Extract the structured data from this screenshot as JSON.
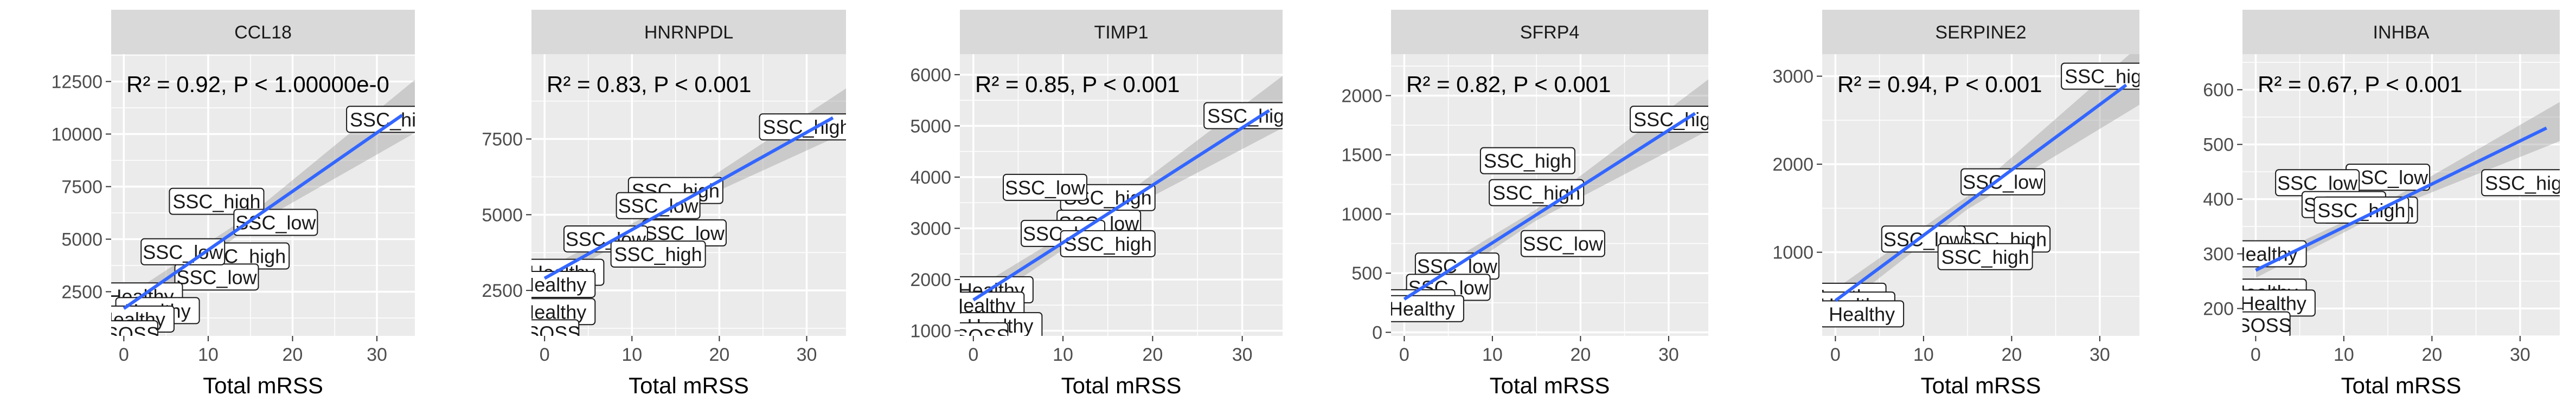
{
  "figure": {
    "xlabel": "Total mRSS",
    "colors": {
      "panel": "#ebebeb",
      "grid": "#ffffff",
      "strip": "#d9d9d9",
      "line": "#3366ff",
      "band": "#999999",
      "label_fill": "#ffffff"
    }
  },
  "chart_data": [
    {
      "type": "scatter",
      "title": "CCL18",
      "stats": "R² = 0.92, P < 1.00000e-0",
      "xlabel": "Total mRSS",
      "xlim": [
        -1.5,
        34.5
      ],
      "ylim": [
        400,
        13800
      ],
      "xticks": [
        0,
        10,
        20,
        30
      ],
      "yticks": [
        2500,
        5000,
        7500,
        10000,
        12500
      ],
      "fit": [
        {
          "x": 0,
          "y": 1700
        },
        {
          "x": 33,
          "y": 10900
        }
      ],
      "points": [
        {
          "x": 32,
          "y": 10700,
          "label": "SSC_high"
        },
        {
          "x": 11,
          "y": 6800,
          "label": "SSC_high"
        },
        {
          "x": 18,
          "y": 5800,
          "label": "SSC_low"
        },
        {
          "x": 14,
          "y": 4200,
          "label": "SSC_high"
        },
        {
          "x": 11,
          "y": 3200,
          "label": "SSC_low"
        },
        {
          "x": 7,
          "y": 4400,
          "label": "SSC_low"
        },
        {
          "x": 2,
          "y": 2300,
          "label": "Healthy"
        },
        {
          "x": 4,
          "y": 1600,
          "label": "Healthy"
        },
        {
          "x": 1,
          "y": 1200,
          "label": "Healthy"
        },
        {
          "x": 1,
          "y": 500,
          "label": "SOSS"
        }
      ]
    },
    {
      "type": "scatter",
      "title": "HNRNPDL",
      "stats": "R² = 0.83, P < 0.001",
      "xlabel": "Total mRSS",
      "xlim": [
        -1.5,
        34.5
      ],
      "ylim": [
        1000,
        10300
      ],
      "xticks": [
        0,
        10,
        20,
        30
      ],
      "yticks": [
        2500,
        5000,
        7500
      ],
      "fit": [
        {
          "x": 0,
          "y": 2900
        },
        {
          "x": 33,
          "y": 8200
        }
      ],
      "points": [
        {
          "x": 30,
          "y": 7900,
          "label": "SSC_high"
        },
        {
          "x": 15,
          "y": 5800,
          "label": "SSC_high"
        },
        {
          "x": 13,
          "y": 5300,
          "label": "SSC_low"
        },
        {
          "x": 16,
          "y": 4400,
          "label": "SSC_low"
        },
        {
          "x": 7,
          "y": 4200,
          "label": "SSC_low"
        },
        {
          "x": 13,
          "y": 3700,
          "label": "SSC_high"
        },
        {
          "x": 2,
          "y": 3100,
          "label": "Healthy"
        },
        {
          "x": 1,
          "y": 2700,
          "label": "Healthy"
        },
        {
          "x": 1,
          "y": 1800,
          "label": "Healthy"
        },
        {
          "x": 1,
          "y": 1100,
          "label": "SOSS"
        }
      ]
    },
    {
      "type": "scatter",
      "title": "TIMP1",
      "stats": "R² = 0.85, P < 0.001",
      "xlabel": "Total mRSS",
      "xlim": [
        -1.5,
        34.5
      ],
      "ylim": [
        900,
        6400
      ],
      "xticks": [
        0,
        10,
        20,
        30
      ],
      "yticks": [
        1000,
        2000,
        3000,
        4000,
        5000,
        6000
      ],
      "fit": [
        {
          "x": 0,
          "y": 1600
        },
        {
          "x": 33,
          "y": 5300
        }
      ],
      "points": [
        {
          "x": 31,
          "y": 5200,
          "label": "SSC_high"
        },
        {
          "x": 15,
          "y": 3600,
          "label": "SSC_high"
        },
        {
          "x": 8,
          "y": 3800,
          "label": "SSC_low"
        },
        {
          "x": 14,
          "y": 3100,
          "label": "SSC_low"
        },
        {
          "x": 10,
          "y": 2900,
          "label": "SSC_low"
        },
        {
          "x": 15,
          "y": 2700,
          "label": "SSC_high"
        },
        {
          "x": 2,
          "y": 1800,
          "label": "Healthy"
        },
        {
          "x": 1,
          "y": 1500,
          "label": "Healthy"
        },
        {
          "x": 3,
          "y": 1100,
          "label": "Healthy"
        },
        {
          "x": 1,
          "y": 900,
          "label": "SOSS"
        }
      ]
    },
    {
      "type": "scatter",
      "title": "SFRP4",
      "stats": "R² = 0.82, P < 0.001",
      "xlabel": "Total mRSS",
      "xlim": [
        -1.5,
        34.5
      ],
      "ylim": [
        -30,
        2350
      ],
      "xticks": [
        0,
        10,
        20,
        30
      ],
      "yticks": [
        0,
        500,
        1000,
        1500,
        2000
      ],
      "fit": [
        {
          "x": 0,
          "y": 280
        },
        {
          "x": 33,
          "y": 1850
        }
      ],
      "points": [
        {
          "x": 31,
          "y": 1800,
          "label": "SSC_high"
        },
        {
          "x": 14,
          "y": 1450,
          "label": "SSC_high"
        },
        {
          "x": 15,
          "y": 1180,
          "label": "SSC_high"
        },
        {
          "x": 18,
          "y": 750,
          "label": "SSC_low"
        },
        {
          "x": 6,
          "y": 560,
          "label": "SSC_low"
        },
        {
          "x": 5,
          "y": 380,
          "label": "SSC_low"
        },
        {
          "x": 1,
          "y": 250,
          "label": "Healthy"
        },
        {
          "x": 2,
          "y": 200,
          "label": "Healthy"
        }
      ]
    },
    {
      "type": "scatter",
      "title": "SERPINE2",
      "stats": "R² = 0.94, P < 0.001",
      "xlabel": "Total mRSS",
      "xlim": [
        -1.5,
        34.5
      ],
      "ylim": [
        50,
        3250
      ],
      "xticks": [
        0,
        10,
        20,
        30
      ],
      "yticks": [
        1000,
        2000,
        3000
      ],
      "fit": [
        {
          "x": 0,
          "y": 450
        },
        {
          "x": 33,
          "y": 2900
        }
      ],
      "points": [
        {
          "x": 31,
          "y": 3000,
          "label": "SSC_high"
        },
        {
          "x": 19,
          "y": 1800,
          "label": "SSC_low"
        },
        {
          "x": 19,
          "y": 1150,
          "label": "SSC_high"
        },
        {
          "x": 10,
          "y": 1150,
          "label": "SSC_low"
        },
        {
          "x": 17,
          "y": 950,
          "label": "SSC_high"
        },
        {
          "x": 1,
          "y": 500,
          "label": "Healthy"
        },
        {
          "x": 2,
          "y": 400,
          "label": "Healthy"
        },
        {
          "x": 3,
          "y": 300,
          "label": "Healthy"
        }
      ]
    },
    {
      "type": "scatter",
      "title": "INHBA",
      "stats": "R² = 0.67, P < 0.001",
      "xlabel": "Total mRSS",
      "xlim": [
        -1.5,
        34.5
      ],
      "ylim": [
        150,
        665
      ],
      "xticks": [
        0,
        10,
        20,
        30
      ],
      "yticks": [
        200,
        300,
        400,
        500,
        600
      ],
      "fit": [
        {
          "x": 0,
          "y": 270
        },
        {
          "x": 33,
          "y": 530
        }
      ],
      "points": [
        {
          "x": 31,
          "y": 430,
          "label": "SSC_high"
        },
        {
          "x": 15,
          "y": 440,
          "label": "SSC_low"
        },
        {
          "x": 7,
          "y": 430,
          "label": "SSC_low"
        },
        {
          "x": 10,
          "y": 390,
          "label": "SSC_low"
        },
        {
          "x": 13,
          "y": 380,
          "label": "SSC_high"
        },
        {
          "x": 12,
          "y": 380,
          "label": "SSC_high"
        },
        {
          "x": 1,
          "y": 300,
          "label": "Healthy"
        },
        {
          "x": 1,
          "y": 230,
          "label": "Healthy"
        },
        {
          "x": 2,
          "y": 210,
          "label": "Healthy"
        },
        {
          "x": 1,
          "y": 170,
          "label": "SOSS"
        }
      ]
    }
  ]
}
